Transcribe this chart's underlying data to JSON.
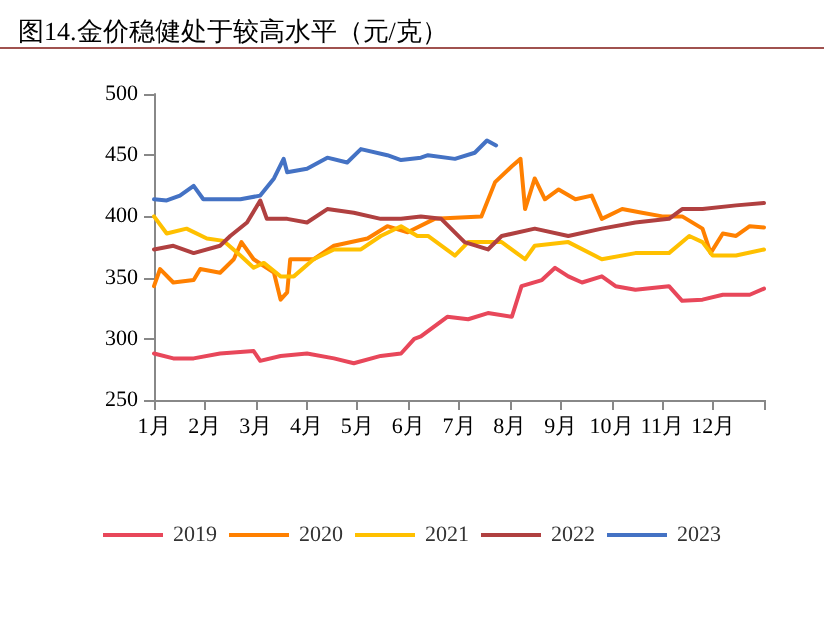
{
  "chart_data": {
    "type": "line",
    "title": "图14.金价稳健处于较高水平（元/克）",
    "xlim": [
      1,
      13
    ],
    "xticks": [
      {
        "value": 1,
        "label": "1月"
      },
      {
        "value": 2,
        "label": "2月"
      },
      {
        "value": 3,
        "label": "3月"
      },
      {
        "value": 4,
        "label": "4月"
      },
      {
        "value": 5,
        "label": "5月"
      },
      {
        "value": 6,
        "label": "6月"
      },
      {
        "value": 7,
        "label": "7月"
      },
      {
        "value": 8,
        "label": "8月"
      },
      {
        "value": 9,
        "label": "9月"
      },
      {
        "value": 10,
        "label": "10月"
      },
      {
        "value": 11,
        "label": "11月"
      },
      {
        "value": 12,
        "label": "12月"
      },
      {
        "value": 13,
        "label": null
      }
    ],
    "ylim": [
      250,
      500
    ],
    "yticks": [
      250,
      300,
      350,
      400,
      450,
      500
    ],
    "grid": false,
    "legend": "bottom",
    "marker": "none",
    "line_style": "solid",
    "series": [
      {
        "name": "2019",
        "color": "#e8475a",
        "x": [
          1,
          1.38,
          1.78,
          2.3,
          2.96,
          3.09,
          3.49,
          4.01,
          4.54,
          4.93,
          5.46,
          5.86,
          6.12,
          6.25,
          6.77,
          7.18,
          7.57,
          8.04,
          8.23,
          8.63,
          8.89,
          9.15,
          9.42,
          9.81,
          10.08,
          10.47,
          11.13,
          11.39,
          11.79,
          12.19,
          12.72,
          13
        ],
        "values": [
          288,
          284,
          284,
          288,
          290,
          282,
          286,
          288,
          284,
          280,
          286,
          288,
          300,
          302,
          318,
          316,
          321,
          318,
          343,
          348,
          358,
          351,
          346,
          351,
          343,
          340,
          343,
          331,
          332,
          336,
          336,
          341
        ]
      },
      {
        "name": "2020",
        "color": "#ff8000",
        "x": [
          1,
          1.12,
          1.38,
          1.78,
          1.91,
          2.3,
          2.57,
          2.72,
          2.96,
          3.36,
          3.49,
          3.62,
          3.68,
          4.14,
          4.54,
          5.2,
          5.59,
          5.99,
          6.52,
          7.44,
          7.71,
          8.04,
          8.21,
          8.3,
          8.49,
          8.69,
          8.96,
          9.29,
          9.61,
          9.81,
          10.21,
          10.6,
          11.0,
          11.39,
          11.79,
          11.95,
          12.19,
          12.45,
          12.72,
          13
        ],
        "values": [
          343,
          357,
          346,
          348,
          357,
          354,
          365,
          379,
          365,
          354,
          332,
          338,
          365,
          365,
          376,
          382,
          392,
          387,
          398,
          400,
          428,
          441,
          447,
          406,
          431,
          414,
          422,
          414,
          417,
          398,
          406,
          403,
          400,
          400,
          390,
          370,
          386,
          384,
          392,
          391
        ]
      },
      {
        "name": "2021",
        "color": "#ffc000",
        "x": [
          1,
          1.25,
          1.64,
          2.04,
          2.37,
          2.7,
          2.96,
          3.16,
          3.49,
          3.75,
          4.14,
          4.54,
          5.07,
          5.46,
          5.86,
          6.18,
          6.39,
          6.92,
          7.18,
          7.84,
          8.3,
          8.49,
          9.15,
          9.81,
          10.47,
          11.13,
          11.53,
          11.79,
          11.99,
          12.45,
          13
        ],
        "values": [
          400,
          386,
          390,
          382,
          380,
          368,
          358,
          362,
          351,
          351,
          365,
          373,
          373,
          384,
          392,
          384,
          384,
          368,
          379,
          379,
          365,
          376,
          379,
          365,
          370,
          370,
          384,
          379,
          368,
          368,
          373
        ]
      },
      {
        "name": "2022",
        "color": "#b04040",
        "x": [
          1,
          1.38,
          1.78,
          2.3,
          2.5,
          2.83,
          3.09,
          3.22,
          3.62,
          4.01,
          4.41,
          4.93,
          5.46,
          5.86,
          6.25,
          6.65,
          7.11,
          7.57,
          7.84,
          8.49,
          9.15,
          9.81,
          10.47,
          11.13,
          11.39,
          11.79,
          12.45,
          13
        ],
        "values": [
          373,
          376,
          370,
          376,
          384,
          395,
          413,
          398,
          398,
          395,
          406,
          403,
          398,
          398,
          400,
          398,
          379,
          373,
          384,
          390,
          384,
          390,
          395,
          398,
          406,
          406,
          409,
          411
        ]
      },
      {
        "name": "2023",
        "color": "#4472c4",
        "x": [
          1,
          1.25,
          1.51,
          1.78,
          1.97,
          2.7,
          3.09,
          3.36,
          3.55,
          3.62,
          4.01,
          4.41,
          4.8,
          5.07,
          5.59,
          5.86,
          6.25,
          6.39,
          6.92,
          7.31,
          7.55,
          7.73
        ],
        "values": [
          414,
          413,
          417,
          425,
          414,
          414,
          417,
          431,
          447,
          436,
          439,
          448,
          444,
          455,
          450,
          446,
          448,
          450,
          447,
          452,
          462,
          458
        ]
      }
    ]
  }
}
